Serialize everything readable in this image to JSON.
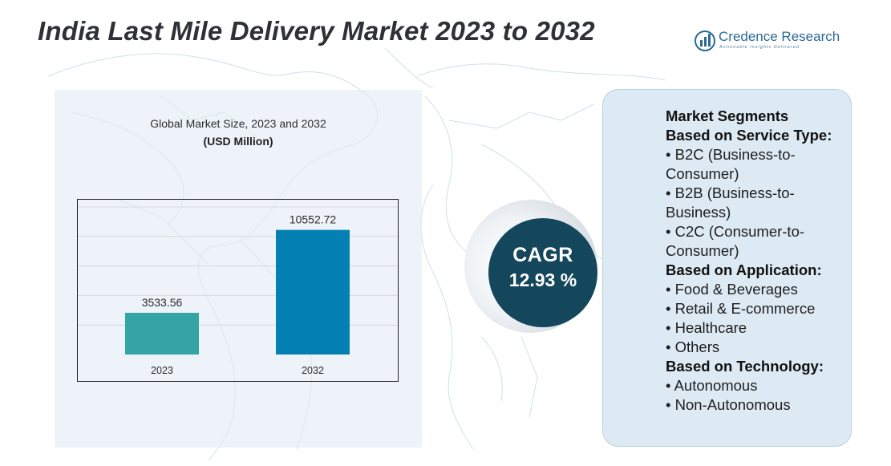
{
  "header": {
    "title": "India Last Mile Delivery Market 2023 to 2032"
  },
  "brand": {
    "name": "Credence Research",
    "tagline": "Actionable Insights Delivered",
    "icon": "bar-chart-logo-icon",
    "color": "#2b6a96"
  },
  "chart_data": {
    "type": "bar",
    "title": "Global Market Size, 2023 and 2032",
    "unit": "(USD Million)",
    "categories": [
      "2023",
      "2032"
    ],
    "values": [
      3533.56,
      10552.72
    ],
    "value_labels": [
      "3533.56",
      "10552.72"
    ],
    "colors": [
      "#34a4a4",
      "#0480b2"
    ],
    "ylim": [
      0,
      12500
    ],
    "grid": true,
    "legend": "none"
  },
  "cagr": {
    "label": "CAGR",
    "value": "12.93 %"
  },
  "segments": {
    "title": "Market Segments",
    "groups": [
      {
        "heading": "Based on Service Type:",
        "items": [
          "• B2C (Business-to-Consumer)",
          "• B2B (Business-to-Business)",
          "• C2C (Consumer-to-Consumer)"
        ]
      },
      {
        "heading": "Based on Application:",
        "items": [
          "• Food & Beverages",
          "• Retail & E-commerce",
          "• Healthcare",
          "• Others"
        ]
      },
      {
        "heading": "Based on Technology:",
        "items": [
          "• Autonomous",
          "• Non-Autonomous"
        ]
      }
    ]
  }
}
